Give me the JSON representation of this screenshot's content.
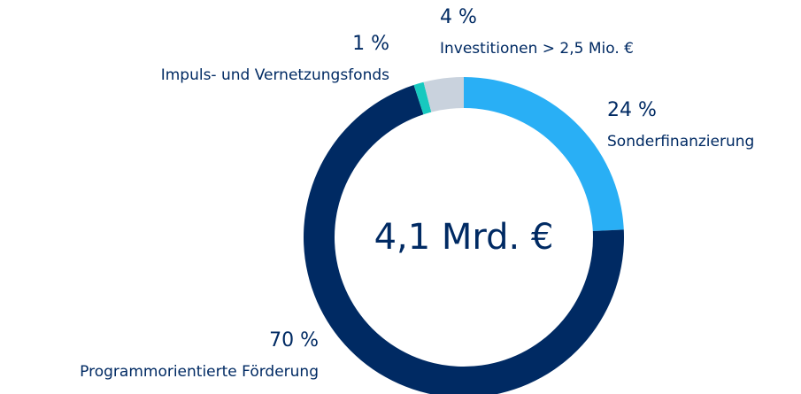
{
  "chart_data": {
    "type": "donut",
    "center_label": "4,1 Mrd. €",
    "categories": [
      "Sonderfinanzierung",
      "Programmorientierte Förderung",
      "Impuls- und Vernetzungsfonds",
      "Investitionen > 2,5 Mio. €"
    ],
    "values": [
      24,
      70,
      1,
      4
    ],
    "value_labels": [
      "24 %",
      "70 %",
      "1 %",
      "4 %"
    ],
    "colors": [
      "#29aff5",
      "#002a63",
      "#17c9bf",
      "#c9d2dd"
    ]
  }
}
